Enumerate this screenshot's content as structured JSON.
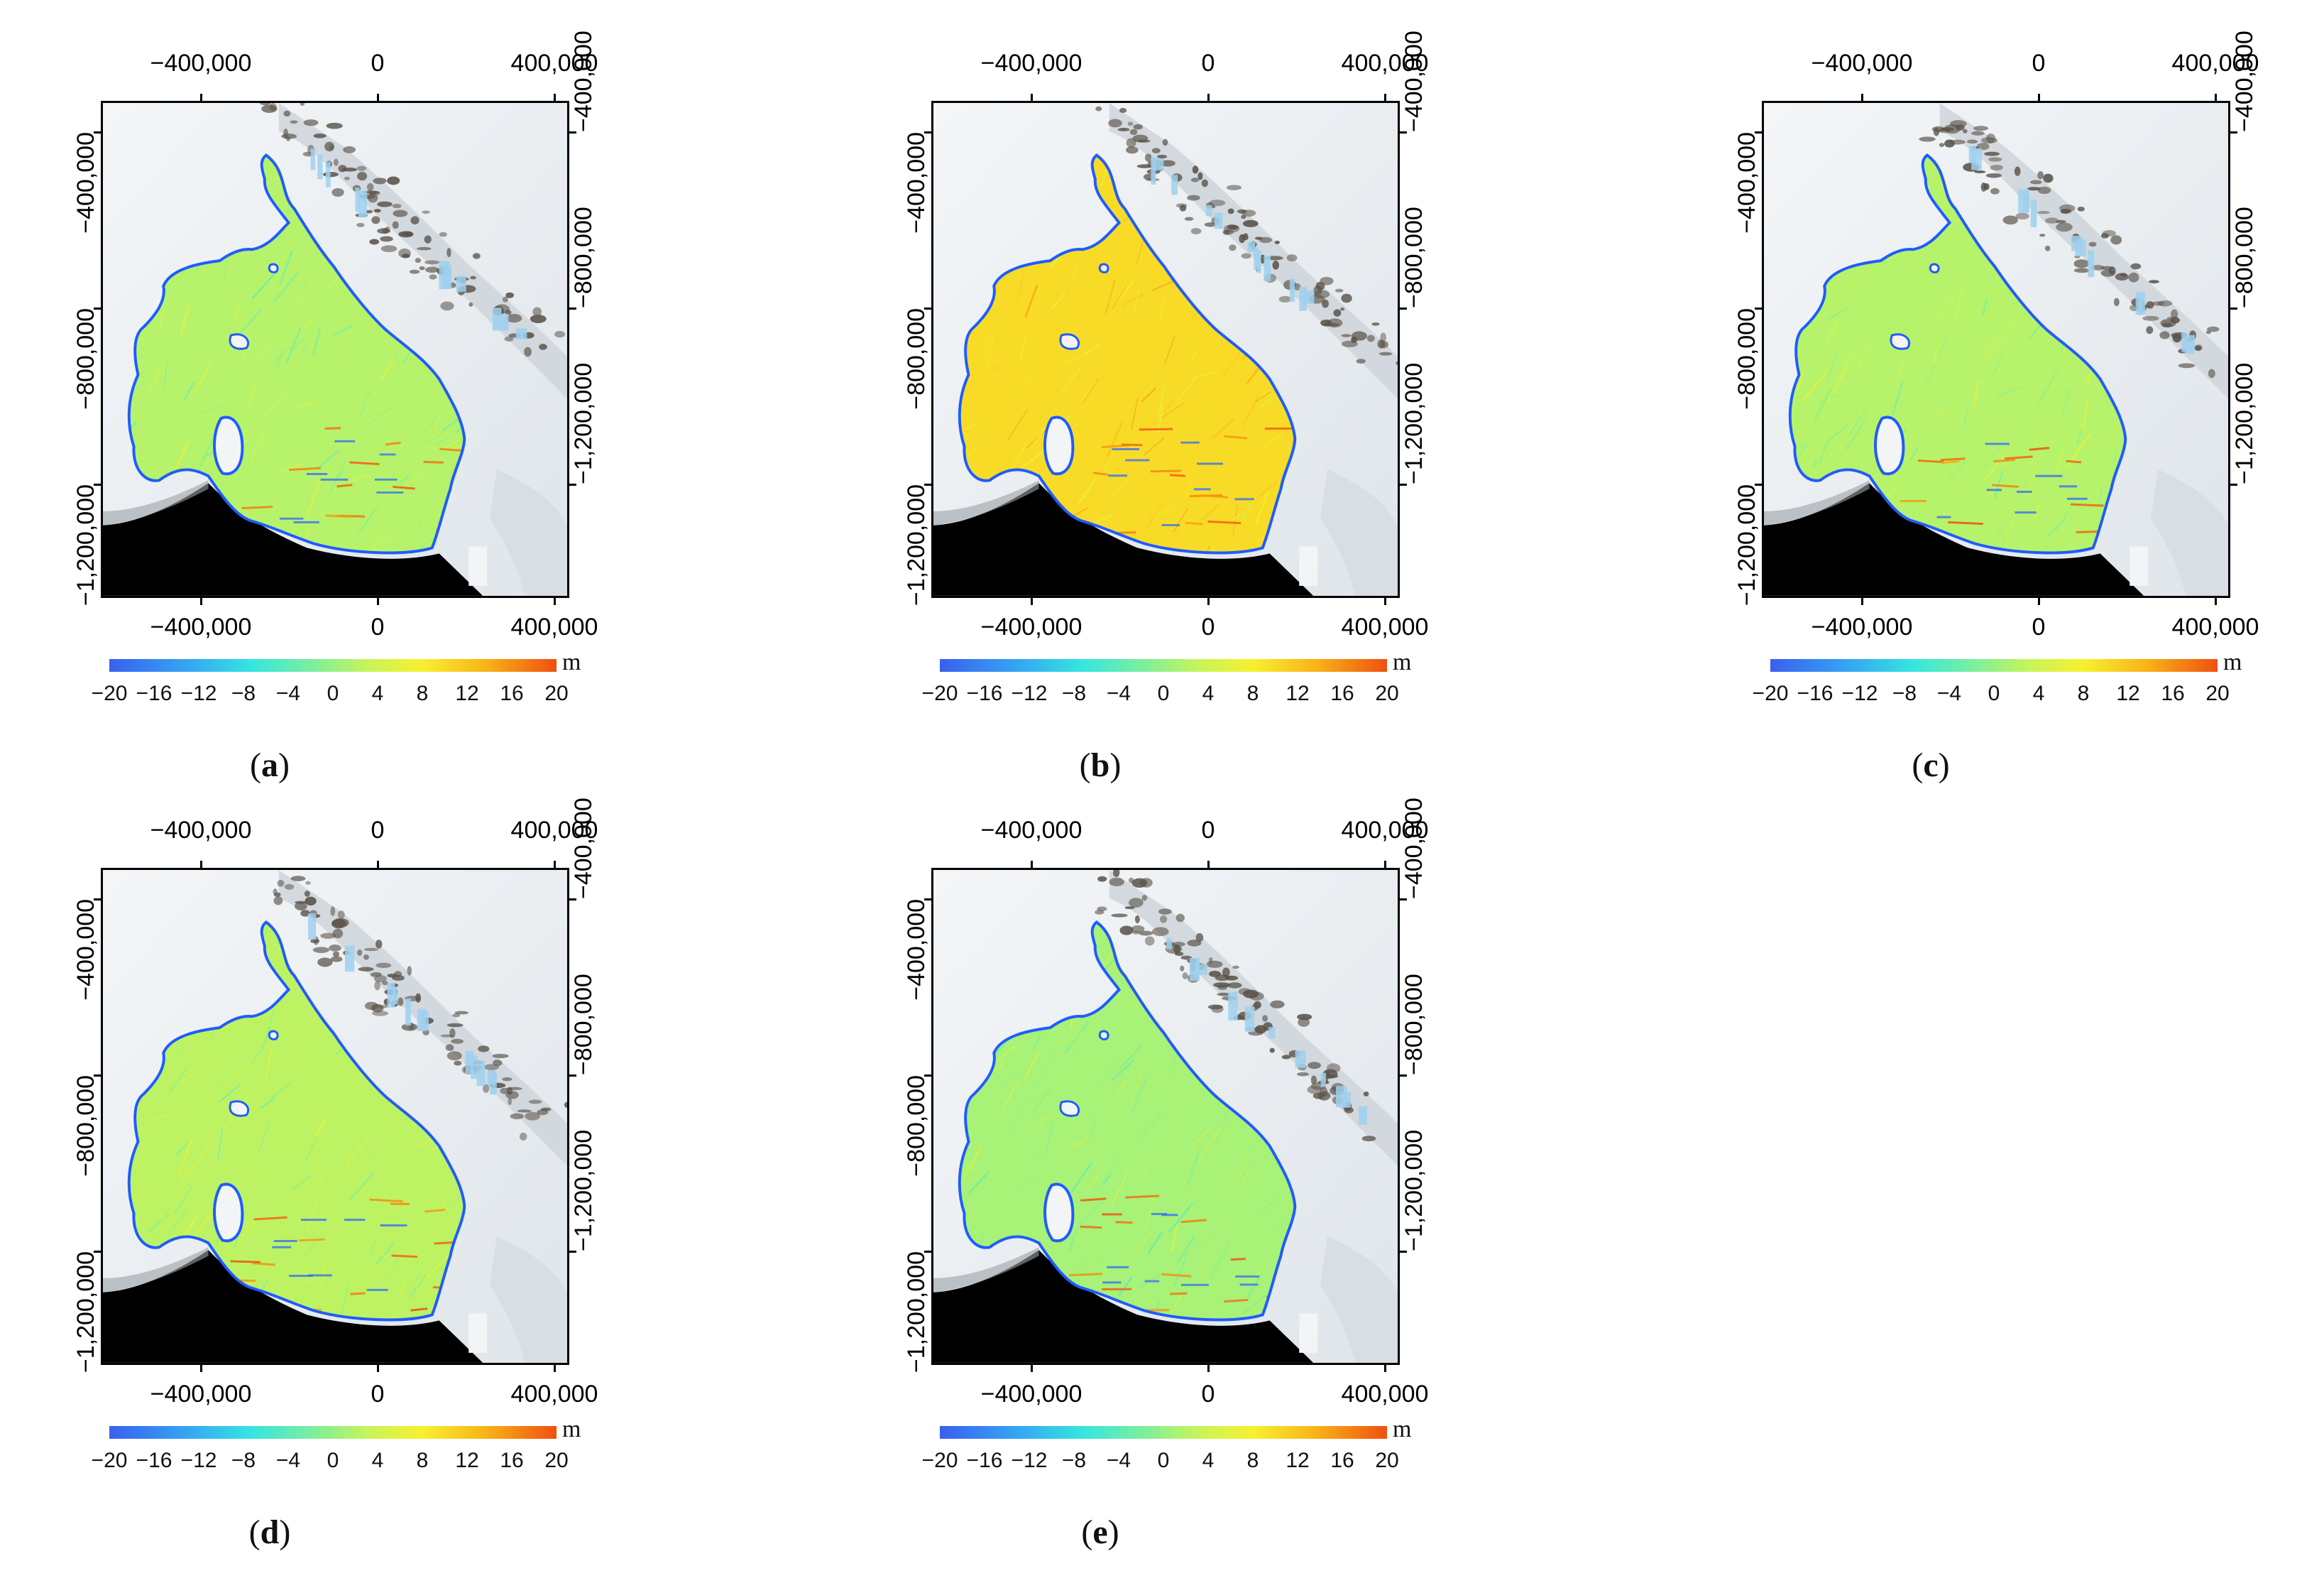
{
  "panels": [
    {
      "id": "a",
      "label_letter": "a",
      "mean_offset": 0.0
    },
    {
      "id": "b",
      "label_letter": "b",
      "mean_offset": 8.0
    },
    {
      "id": "c",
      "label_letter": "c",
      "mean_offset": 0.0
    },
    {
      "id": "d",
      "label_letter": "d",
      "mean_offset": 0.5
    },
    {
      "id": "e",
      "label_letter": "e",
      "mean_offset": -1.0
    }
  ],
  "axis": {
    "x_ticks": [
      "−400,000",
      "0",
      "400,000"
    ],
    "y_ticks": [
      "−400,000",
      "−800,000",
      "−1,200,000"
    ]
  },
  "colorbar": {
    "unit": "m",
    "tick_labels": [
      "−20",
      "−16",
      "−12",
      "−8",
      "−4",
      "0",
      "4",
      "8",
      "12",
      "16",
      "20"
    ],
    "range": [
      -20,
      20
    ]
  },
  "label_parens": {
    "open": "(",
    "close": ")"
  },
  "colors": {
    "outline": "#1f5cff",
    "ocean": "#000000",
    "ice_background": "#edf1f4",
    "rock": "#5a5248",
    "meltwater": "#9fd0ee"
  }
}
